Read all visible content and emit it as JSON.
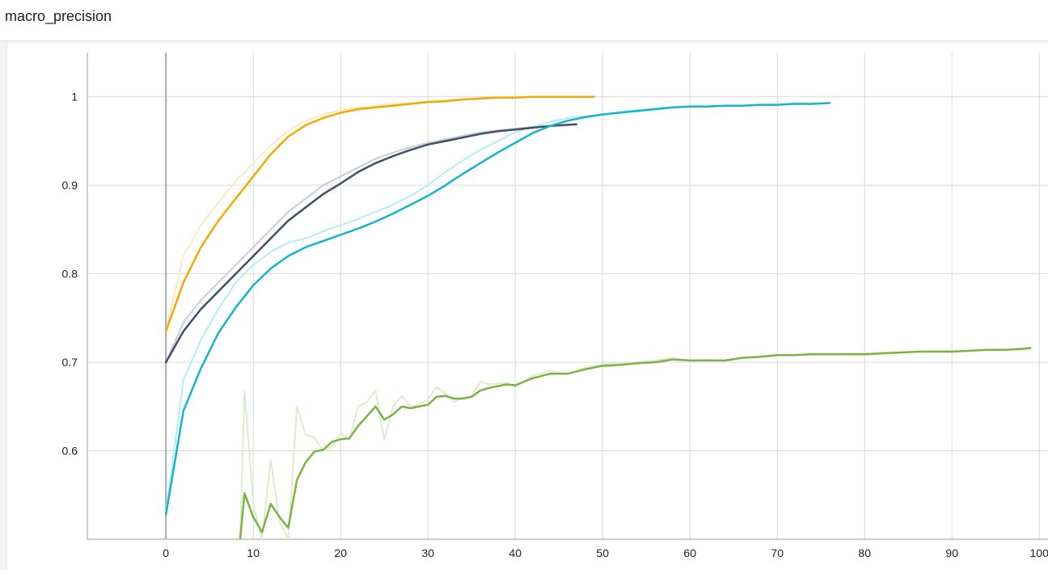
{
  "header": {
    "title": "macro_precision"
  },
  "colors": {
    "grid": "#d9d9d9",
    "axis": "#9e9e9e",
    "zero_axis": "#a8a8a8",
    "tick_text": "#212121"
  },
  "chart_data": {
    "type": "line",
    "title": "macro_precision",
    "xlabel": "",
    "ylabel": "",
    "xlim": [
      -9,
      101
    ],
    "ylim": [
      0.5,
      1.05
    ],
    "x_ticks": [
      0,
      10,
      20,
      30,
      40,
      50,
      60,
      70,
      80,
      90,
      100
    ],
    "y_ticks": [
      0.6,
      0.7,
      0.8,
      0.9,
      1.0
    ],
    "y_tick_labels": [
      "0.6",
      "0.7",
      "0.8",
      "0.9",
      "1"
    ],
    "grid": true,
    "legend": "none",
    "series": [
      {
        "color": "#f2a900",
        "raw_color": "#fde8c0",
        "x": [
          0,
          2,
          4,
          6,
          8,
          10,
          12,
          14,
          16,
          18,
          20,
          22,
          24,
          26,
          28,
          30,
          32,
          34,
          36,
          38,
          40,
          42,
          44,
          46,
          49
        ],
        "raw": [
          0.735,
          0.82,
          0.855,
          0.88,
          0.905,
          0.925,
          0.945,
          0.962,
          0.973,
          0.98,
          0.985,
          0.988,
          0.99,
          0.992,
          0.993,
          0.995,
          0.996,
          0.997,
          0.998,
          0.999,
          0.999,
          1.0,
          1.0,
          1.0,
          1.0
        ],
        "y": [
          0.735,
          0.79,
          0.83,
          0.86,
          0.885,
          0.91,
          0.935,
          0.955,
          0.968,
          0.976,
          0.982,
          0.986,
          0.988,
          0.99,
          0.992,
          0.994,
          0.995,
          0.997,
          0.998,
          0.999,
          0.999,
          1.0,
          1.0,
          1.0,
          1.0
        ]
      },
      {
        "color": "#425066",
        "raw_color": "#c9ccd9",
        "x": [
          0,
          2,
          4,
          6,
          8,
          10,
          12,
          14,
          16,
          18,
          20,
          22,
          24,
          26,
          28,
          30,
          32,
          34,
          36,
          38,
          40,
          42,
          44,
          47
        ],
        "raw": [
          0.7,
          0.745,
          0.77,
          0.79,
          0.81,
          0.83,
          0.85,
          0.87,
          0.885,
          0.9,
          0.91,
          0.92,
          0.93,
          0.937,
          0.943,
          0.948,
          0.952,
          0.956,
          0.96,
          0.962,
          0.964,
          0.966,
          0.967,
          0.969
        ],
        "y": [
          0.7,
          0.735,
          0.76,
          0.78,
          0.8,
          0.82,
          0.84,
          0.86,
          0.875,
          0.89,
          0.902,
          0.915,
          0.925,
          0.933,
          0.94,
          0.946,
          0.95,
          0.954,
          0.958,
          0.961,
          0.963,
          0.965,
          0.967,
          0.969
        ]
      },
      {
        "color": "#12b5cb",
        "raw_color": "#b3eef5",
        "x": [
          0,
          2,
          4,
          6,
          8,
          10,
          12,
          14,
          16,
          18,
          20,
          22,
          24,
          26,
          28,
          30,
          32,
          34,
          36,
          38,
          40,
          42,
          44,
          46,
          48,
          50,
          52,
          54,
          56,
          58,
          60,
          62,
          64,
          66,
          68,
          70,
          72,
          74,
          76
        ],
        "raw": [
          0.53,
          0.68,
          0.725,
          0.76,
          0.79,
          0.81,
          0.825,
          0.835,
          0.84,
          0.848,
          0.855,
          0.862,
          0.87,
          0.878,
          0.888,
          0.9,
          0.915,
          0.928,
          0.94,
          0.95,
          0.96,
          0.966,
          0.972,
          0.976,
          0.978,
          0.98,
          0.983,
          0.985,
          0.987,
          0.988,
          0.989,
          0.989,
          0.99,
          0.99,
          0.991,
          0.991,
          0.993,
          0.992,
          0.993
        ],
        "y": [
          0.528,
          0.645,
          0.693,
          0.733,
          0.762,
          0.787,
          0.806,
          0.82,
          0.83,
          0.837,
          0.844,
          0.851,
          0.859,
          0.868,
          0.878,
          0.888,
          0.9,
          0.913,
          0.925,
          0.937,
          0.948,
          0.959,
          0.967,
          0.973,
          0.977,
          0.98,
          0.982,
          0.984,
          0.986,
          0.988,
          0.989,
          0.989,
          0.99,
          0.99,
          0.991,
          0.991,
          0.992,
          0.992,
          0.993
        ]
      },
      {
        "color": "#7cb342",
        "raw_color": "#ddecd0",
        "x": [
          8.5,
          9,
          10,
          11,
          12,
          13,
          14,
          15,
          16,
          17,
          18,
          19,
          20,
          21,
          22,
          23,
          24,
          25,
          26,
          27,
          28,
          29,
          30,
          31,
          32,
          33,
          34,
          35,
          36,
          37,
          38,
          39,
          40,
          42,
          44,
          46,
          48,
          50,
          52,
          54,
          56,
          58,
          60,
          62,
          64,
          66,
          68,
          70,
          72,
          74,
          76,
          78,
          80,
          82,
          84,
          86,
          88,
          90,
          92,
          94,
          96,
          98,
          99
        ],
        "raw": [
          0.5,
          0.667,
          0.54,
          0.5,
          0.59,
          0.52,
          0.5,
          0.65,
          0.618,
          0.615,
          0.6,
          0.605,
          0.62,
          0.612,
          0.65,
          0.655,
          0.668,
          0.612,
          0.65,
          0.662,
          0.65,
          0.652,
          0.658,
          0.672,
          0.665,
          0.655,
          0.66,
          0.662,
          0.678,
          0.675,
          0.676,
          0.677,
          0.672,
          0.685,
          0.69,
          0.687,
          0.694,
          0.698,
          0.699,
          0.7,
          0.702,
          0.705,
          0.702,
          0.703,
          0.701,
          0.705,
          0.707,
          0.708,
          0.708,
          0.71,
          0.709,
          0.71,
          0.71,
          0.711,
          0.711,
          0.712,
          0.713,
          0.713,
          0.713,
          0.714,
          0.714,
          0.716,
          0.717
        ],
        "y": [
          0.5,
          0.552,
          0.525,
          0.508,
          0.54,
          0.525,
          0.513,
          0.567,
          0.587,
          0.599,
          0.601,
          0.61,
          0.613,
          0.614,
          0.628,
          0.639,
          0.65,
          0.635,
          0.641,
          0.65,
          0.648,
          0.65,
          0.652,
          0.661,
          0.662,
          0.659,
          0.659,
          0.661,
          0.668,
          0.671,
          0.673,
          0.675,
          0.674,
          0.682,
          0.687,
          0.687,
          0.692,
          0.696,
          0.697,
          0.699,
          0.7,
          0.703,
          0.702,
          0.702,
          0.702,
          0.705,
          0.706,
          0.708,
          0.708,
          0.709,
          0.709,
          0.709,
          0.709,
          0.71,
          0.711,
          0.712,
          0.712,
          0.712,
          0.713,
          0.714,
          0.714,
          0.715,
          0.716
        ]
      }
    ]
  }
}
